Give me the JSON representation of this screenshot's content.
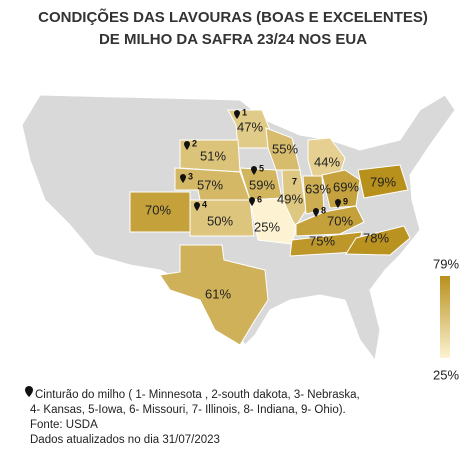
{
  "title": [
    "CONDIÇÕES DAS LAVOURAS (BOAS E EXCELENTES)",
    "DE MILHO DA SAFRA 23/24 NOS EUA"
  ],
  "map": {
    "values": [
      47,
      51,
      55,
      44,
      57,
      59,
      49,
      63,
      69,
      79,
      70,
      50,
      25,
      70,
      75,
      78,
      61
    ],
    "value_labels": [
      "47%",
      "51%",
      "55%",
      "44%",
      "57%",
      "59%",
      "49%",
      "63%",
      "69%",
      "79%",
      "70%",
      "50%",
      "25%",
      "70%",
      "75%",
      "78%",
      "61%"
    ],
    "markers": [
      "1",
      "2",
      "3",
      "4",
      "5",
      "6",
      "7",
      "8",
      "9"
    ]
  },
  "colorbar": {
    "max": 79,
    "min": 25,
    "max_label": "79%",
    "min_label": "25%",
    "max_color": "#b8901c",
    "min_color": "#fdf3d2"
  },
  "footnote": [
    "Cinturão do milho ( 1- Minnesota , 2-south dakota, 3- Nebraska,",
    "4- Kansas, 5-Iowa, 6- Missouri, 7- Illinois, 8- Indiana, 9- Ohio).",
    "Fonte: USDA",
    "Dados atualizados no dia 31/07/2023"
  ]
}
